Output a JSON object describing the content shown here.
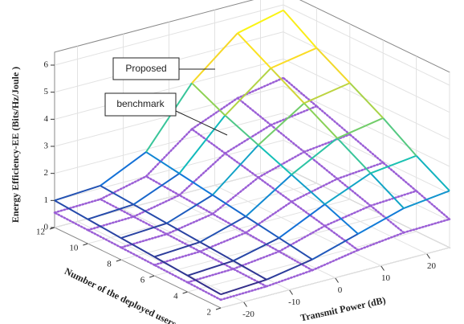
{
  "chart_data": {
    "type": "surface3d",
    "xlabel": "Transmit Power (dB)",
    "ylabel": "Number of the deployed users",
    "zlabel": "Energy Efficiency-EE (Bits/Hz/Joule )",
    "x": [
      -25,
      -15,
      -5,
      5,
      15,
      25
    ],
    "y": [
      2,
      4,
      6,
      8,
      10,
      12
    ],
    "xlim": [
      -25,
      25
    ],
    "ylim": [
      2,
      12
    ],
    "zlim": [
      0,
      6
    ],
    "xticks": [
      -20,
      -10,
      0,
      10,
      20
    ],
    "yticks": [
      2,
      4,
      6,
      8,
      10,
      12
    ],
    "zticks": [
      0,
      1,
      2,
      3,
      4,
      5,
      6
    ],
    "grid": true,
    "series": [
      {
        "name": "Proposed",
        "colormap": "parula",
        "values": [
          [
            0.5,
            0.6,
            0.9,
            1.4,
            1.9,
            2.1
          ],
          [
            0.6,
            0.7,
            1.1,
            1.9,
            2.6,
            2.8
          ],
          [
            0.7,
            0.8,
            1.3,
            2.4,
            3.3,
            3.6
          ],
          [
            0.8,
            0.9,
            1.5,
            2.9,
            4.0,
            4.3
          ],
          [
            0.9,
            1.0,
            1.7,
            3.4,
            4.7,
            5.0
          ],
          [
            1.0,
            1.1,
            1.9,
            4.0,
            5.4,
            5.8
          ]
        ]
      },
      {
        "name": "benchmark",
        "color": "#9b5fd6",
        "values": [
          [
            0.3,
            0.35,
            0.5,
            0.8,
            1.0,
            1.05
          ],
          [
            0.35,
            0.4,
            0.6,
            1.1,
            1.4,
            1.5
          ],
          [
            0.4,
            0.45,
            0.7,
            1.4,
            1.8,
            1.95
          ],
          [
            0.45,
            0.5,
            0.8,
            1.7,
            2.2,
            2.4
          ],
          [
            0.5,
            0.55,
            0.9,
            2.0,
            2.6,
            2.85
          ],
          [
            0.55,
            0.6,
            1.0,
            2.3,
            3.0,
            3.3
          ]
        ]
      }
    ]
  }
}
